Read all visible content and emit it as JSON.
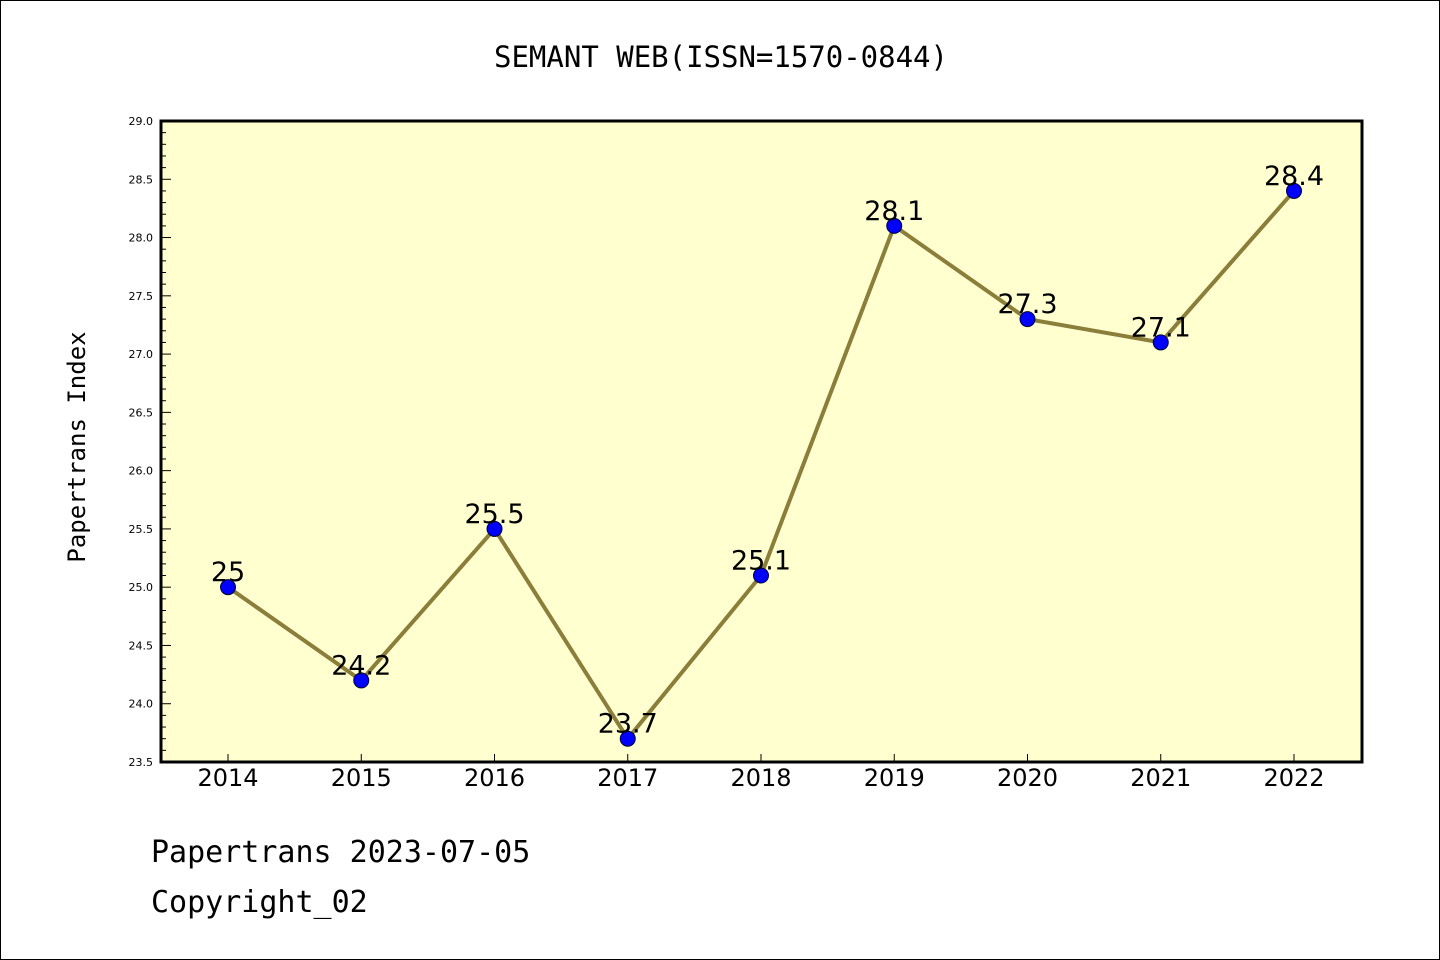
{
  "chart_data": {
    "type": "line",
    "title": "SEMANT WEB(ISSN=1570-0844)",
    "xlabel": "",
    "ylabel": "Papertrans Index",
    "categories": [
      "2014",
      "2015",
      "2016",
      "2017",
      "2018",
      "2019",
      "2020",
      "2021",
      "2022"
    ],
    "series": [
      {
        "values": [
          25.0,
          24.2,
          25.5,
          23.7,
          25.1,
          28.1,
          27.3,
          27.1,
          28.4
        ],
        "data_labels": [
          "25",
          "24.2",
          "25.5",
          "23.7",
          "25.1",
          "28.1",
          "27.3",
          "27.1",
          "28.4"
        ]
      }
    ],
    "ylim": [
      23.5,
      29.0
    ],
    "yticks": [
      "23.5",
      "24.0",
      "24.5",
      "25.0",
      "25.5",
      "26.0",
      "26.5",
      "27.0",
      "27.5",
      "28.0",
      "28.5",
      "29.0"
    ],
    "grid": false,
    "legend": "none",
    "colors": {
      "plot_background": "#ffffd0",
      "line": "#8b7d3a",
      "marker": "#0000ff"
    }
  },
  "footer": {
    "line1": "Papertrans 2023-07-05",
    "line2": "Copyright_02"
  }
}
